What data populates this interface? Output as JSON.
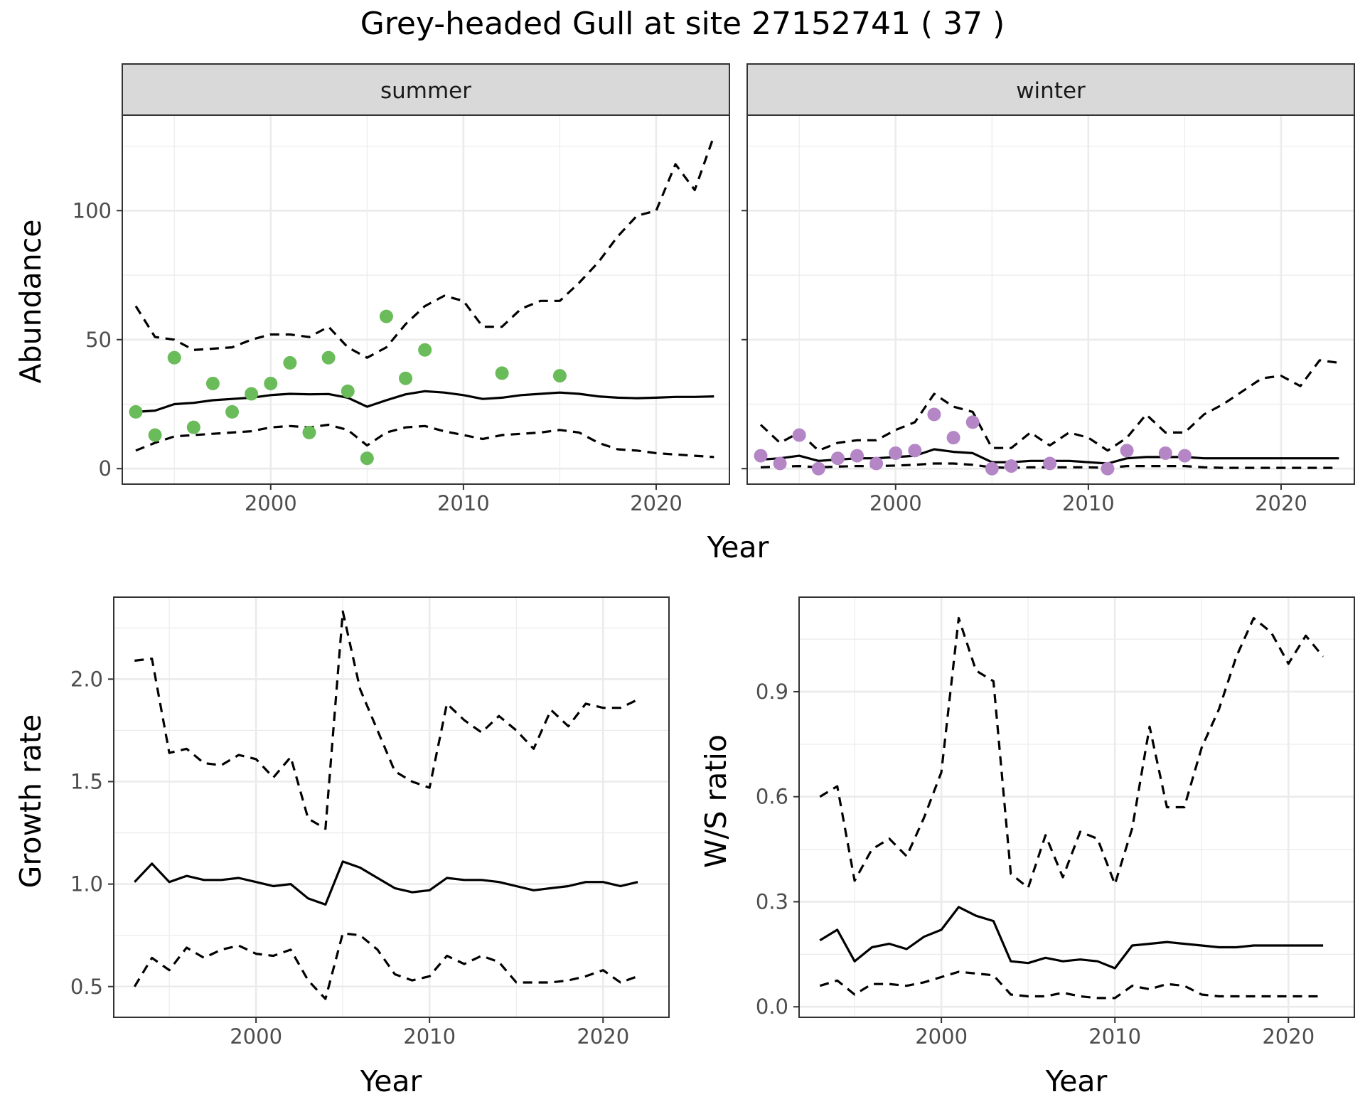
{
  "title": "Grey-headed Gull at site 27152741 ( 37 )",
  "colors": {
    "summer_points": "#6ABB59",
    "winter_points": "#B486C6",
    "lines": "#000000",
    "grid": "#EBEBEB",
    "strip_fill": "#D9D9D9"
  },
  "chart_data": [
    {
      "type": "line",
      "panel": "abundance-summer",
      "facet": "summer",
      "xlabel": "Year",
      "ylabel": "Abundance",
      "xlim": [
        1992.3,
        2023.8
      ],
      "ylim": [
        -6,
        137
      ],
      "x_ticks": [
        2000,
        2010,
        2020
      ],
      "y_ticks": [
        0,
        50,
        100
      ],
      "grid": true,
      "x": [
        1993,
        1994,
        1995,
        1996,
        1997,
        1998,
        1999,
        2000,
        2001,
        2002,
        2003,
        2004,
        2005,
        2006,
        2007,
        2008,
        2009,
        2010,
        2011,
        2012,
        2013,
        2014,
        2015,
        2016,
        2017,
        2018,
        2019,
        2020,
        2021,
        2022,
        2023
      ],
      "series": [
        {
          "role": "estimate",
          "style": "solid",
          "values": [
            22,
            22.5,
            25,
            25.5,
            26.5,
            27,
            27.5,
            28.5,
            29,
            28.8,
            28.9,
            27.5,
            24,
            26.5,
            28.8,
            30,
            29.5,
            28.5,
            27,
            27.5,
            28.5,
            29,
            29.5,
            29,
            28,
            27.5,
            27.3,
            27.5,
            27.8,
            27.8,
            28
          ]
        },
        {
          "role": "upper",
          "style": "dashed",
          "values": [
            63,
            51,
            50,
            46,
            46.5,
            47,
            50,
            52,
            52,
            51,
            55,
            47,
            43,
            47,
            56,
            63,
            67,
            65,
            55,
            55,
            62,
            65,
            65,
            72,
            80,
            90,
            98,
            100,
            118,
            108,
            129
          ]
        },
        {
          "role": "lower",
          "style": "dashed",
          "values": [
            7,
            10,
            12.5,
            13,
            13.5,
            14,
            14.5,
            16,
            16.5,
            16,
            17,
            15,
            9,
            14,
            16,
            16.5,
            14.5,
            13,
            11.5,
            13,
            13.5,
            14,
            15,
            14,
            10,
            7.5,
            7,
            6,
            5.5,
            5,
            4.5
          ]
        }
      ],
      "points": {
        "x": [
          1993,
          1994,
          1995,
          1996,
          1997,
          1998,
          1999,
          2000,
          2001,
          2002,
          2003,
          2004,
          2005,
          2006,
          2007,
          2008,
          2012,
          2015
        ],
        "y": [
          22,
          13,
          43,
          16,
          33,
          22,
          29,
          33,
          41,
          14,
          43,
          30,
          4,
          59,
          35,
          46,
          37,
          36
        ]
      }
    },
    {
      "type": "line",
      "panel": "abundance-winter",
      "facet": "winter",
      "xlabel": "Year",
      "ylabel": "Abundance",
      "xlim": [
        1992.3,
        2023.8
      ],
      "ylim": [
        -6,
        137
      ],
      "x_ticks": [
        2000,
        2010,
        2020
      ],
      "y_ticks": [
        0,
        50,
        100
      ],
      "grid": true,
      "x": [
        1993,
        1994,
        1995,
        1996,
        1997,
        1998,
        1999,
        2000,
        2001,
        2002,
        2003,
        2004,
        2005,
        2006,
        2007,
        2008,
        2009,
        2010,
        2011,
        2012,
        2013,
        2014,
        2015,
        2016,
        2017,
        2018,
        2019,
        2020,
        2021,
        2022,
        2023
      ],
      "series": [
        {
          "role": "estimate",
          "style": "solid",
          "values": [
            3.5,
            4,
            5,
            3,
            3.5,
            4,
            4,
            4.5,
            5,
            7.5,
            6.5,
            6,
            2.5,
            2.5,
            3,
            3,
            3,
            2.5,
            2,
            4,
            4.5,
            4.5,
            4.5,
            4,
            4,
            4,
            4,
            4,
            4,
            4,
            4
          ]
        },
        {
          "role": "upper",
          "style": "dashed",
          "values": [
            17,
            10,
            14,
            7,
            10,
            11,
            11,
            15,
            18,
            29,
            24,
            22,
            8,
            8,
            14,
            9,
            14,
            12,
            7,
            12,
            21,
            14,
            14,
            21,
            25,
            30,
            35,
            36,
            32,
            42,
            41
          ]
        },
        {
          "role": "lower",
          "style": "dashed",
          "values": [
            0.5,
            0.8,
            1,
            0.5,
            0.8,
            1,
            1,
            1.2,
            1.5,
            2,
            2,
            1.5,
            0.5,
            0.3,
            0.5,
            0.5,
            0.5,
            0.5,
            0.3,
            1,
            1,
            1,
            1,
            0.5,
            0.3,
            0.3,
            0.3,
            0.3,
            0.3,
            0.3,
            0.3
          ]
        }
      ],
      "points": {
        "x": [
          1993,
          1994,
          1995,
          1996,
          1997,
          1998,
          1999,
          2000,
          2001,
          2002,
          2003,
          2004,
          2005,
          2006,
          2008,
          2011,
          2012,
          2014,
          2015
        ],
        "y": [
          5,
          2,
          13,
          0,
          4,
          5,
          2,
          6,
          7,
          21,
          12,
          18,
          0,
          1,
          2,
          0,
          7,
          6,
          5
        ]
      }
    },
    {
      "type": "line",
      "panel": "growth-rate",
      "xlabel": "Year",
      "ylabel": "Growth rate",
      "xlim": [
        1991.8,
        2023.8
      ],
      "ylim": [
        0.35,
        2.4
      ],
      "x_ticks": [
        2000,
        2010,
        2020
      ],
      "y_ticks": [
        0.5,
        1.0,
        1.5,
        2.0
      ],
      "y_tick_labels": [
        "0.5",
        "1.0",
        "1.5",
        "2.0"
      ],
      "grid": true,
      "x": [
        1993,
        1994,
        1995,
        1996,
        1997,
        1998,
        1999,
        2000,
        2001,
        2002,
        2003,
        2004,
        2005,
        2006,
        2007,
        2008,
        2009,
        2010,
        2011,
        2012,
        2013,
        2014,
        2015,
        2016,
        2017,
        2018,
        2019,
        2020,
        2021,
        2022
      ],
      "series": [
        {
          "role": "estimate",
          "style": "solid",
          "values": [
            1.01,
            1.1,
            1.01,
            1.04,
            1.02,
            1.02,
            1.03,
            1.01,
            0.99,
            1.0,
            0.93,
            0.9,
            1.11,
            1.08,
            1.03,
            0.98,
            0.96,
            0.97,
            1.03,
            1.02,
            1.02,
            1.01,
            0.99,
            0.97,
            0.98,
            0.99,
            1.01,
            1.01,
            0.99,
            1.01
          ]
        },
        {
          "role": "upper",
          "style": "dashed",
          "values": [
            2.09,
            2.1,
            1.64,
            1.66,
            1.59,
            1.58,
            1.63,
            1.61,
            1.52,
            1.62,
            1.32,
            1.27,
            2.33,
            1.95,
            1.75,
            1.55,
            1.5,
            1.47,
            1.88,
            1.8,
            1.74,
            1.82,
            1.75,
            1.66,
            1.85,
            1.77,
            1.88,
            1.86,
            1.86,
            1.9
          ]
        },
        {
          "role": "lower",
          "style": "dashed",
          "values": [
            0.5,
            0.64,
            0.58,
            0.69,
            0.64,
            0.68,
            0.7,
            0.66,
            0.65,
            0.68,
            0.53,
            0.44,
            0.76,
            0.75,
            0.68,
            0.56,
            0.53,
            0.55,
            0.65,
            0.61,
            0.65,
            0.62,
            0.52,
            0.52,
            0.52,
            0.53,
            0.55,
            0.58,
            0.52,
            0.55
          ]
        }
      ]
    },
    {
      "type": "line",
      "panel": "ws-ratio",
      "xlabel": "Year",
      "ylabel": "W/S ratio",
      "xlim": [
        1991.8,
        2023.8
      ],
      "ylim": [
        -0.03,
        1.17
      ],
      "x_ticks": [
        2000,
        2010,
        2020
      ],
      "y_ticks": [
        0.0,
        0.3,
        0.6,
        0.9
      ],
      "y_tick_labels": [
        "0.0",
        "0.3",
        "0.6",
        "0.9"
      ],
      "grid": true,
      "x": [
        1993,
        1994,
        1995,
        1996,
        1997,
        1998,
        1999,
        2000,
        2001,
        2002,
        2003,
        2004,
        2005,
        2006,
        2007,
        2008,
        2009,
        2010,
        2011,
        2012,
        2013,
        2014,
        2015,
        2016,
        2017,
        2018,
        2019,
        2020,
        2021,
        2022
      ],
      "series": [
        {
          "role": "estimate",
          "style": "solid",
          "values": [
            0.19,
            0.22,
            0.13,
            0.17,
            0.18,
            0.165,
            0.2,
            0.22,
            0.285,
            0.26,
            0.245,
            0.13,
            0.125,
            0.14,
            0.13,
            0.135,
            0.13,
            0.11,
            0.175,
            0.18,
            0.185,
            0.18,
            0.175,
            0.17,
            0.17,
            0.175,
            0.175,
            0.175,
            0.175,
            0.175
          ]
        },
        {
          "role": "upper",
          "style": "dashed",
          "values": [
            0.6,
            0.63,
            0.36,
            0.45,
            0.48,
            0.43,
            0.54,
            0.67,
            1.11,
            0.96,
            0.93,
            0.38,
            0.34,
            0.49,
            0.37,
            0.5,
            0.48,
            0.35,
            0.51,
            0.8,
            0.57,
            0.57,
            0.74,
            0.85,
            1.0,
            1.11,
            1.07,
            0.98,
            1.06,
            1.0
          ]
        },
        {
          "role": "lower",
          "style": "dashed",
          "values": [
            0.06,
            0.075,
            0.035,
            0.065,
            0.065,
            0.06,
            0.07,
            0.085,
            0.1,
            0.095,
            0.09,
            0.035,
            0.03,
            0.03,
            0.04,
            0.03,
            0.025,
            0.025,
            0.06,
            0.05,
            0.065,
            0.06,
            0.035,
            0.03,
            0.03,
            0.03,
            0.03,
            0.03,
            0.03,
            0.03
          ]
        }
      ]
    }
  ]
}
